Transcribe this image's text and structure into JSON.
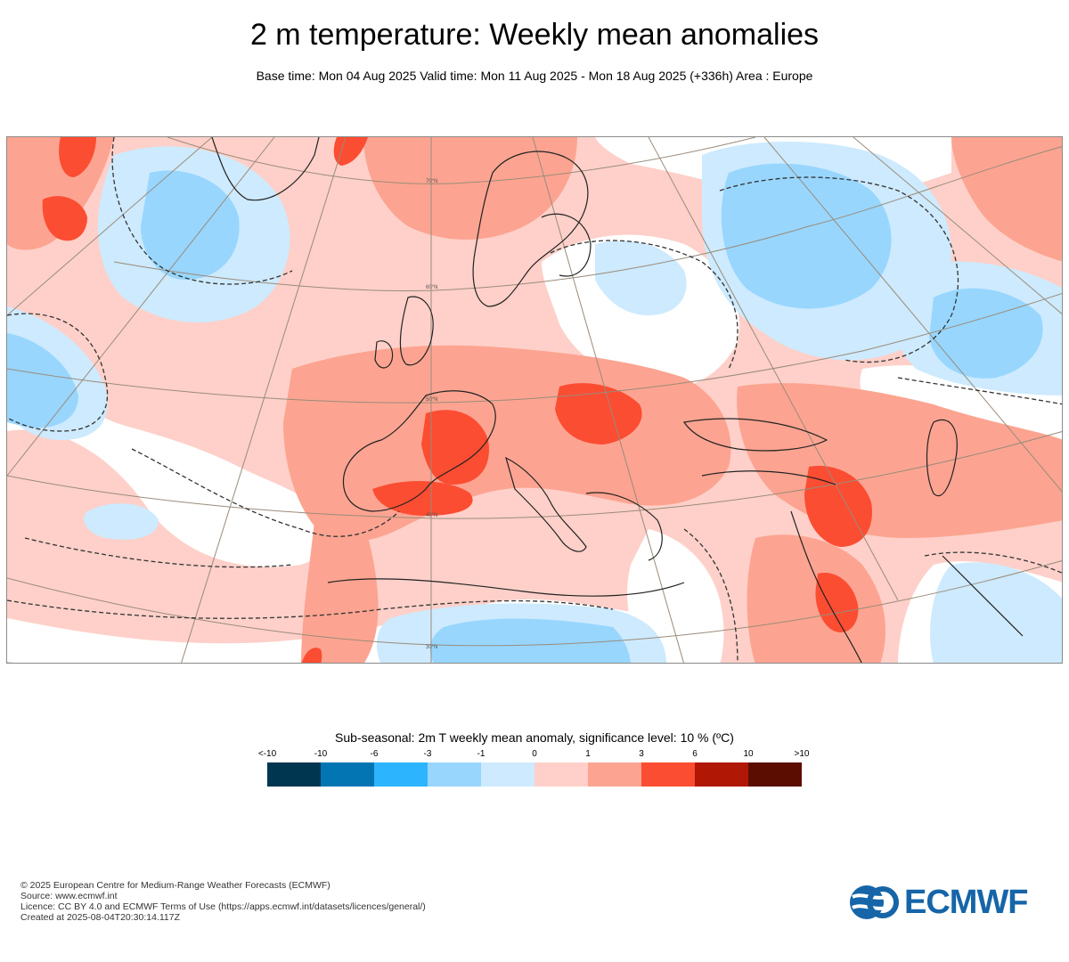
{
  "header": {
    "title": "2 m temperature: Weekly mean anomalies",
    "subtitle": "Base time: Mon 04 Aug 2025 Valid time: Mon 11 Aug 2025 - Mon 18 Aug 2025 (+336h) Area : Europe"
  },
  "map": {
    "latitude_labels": [
      "70°N",
      "60°N",
      "50°N",
      "40°N",
      "30°N"
    ],
    "colors": {
      "ocean_default": "#ffffff",
      "coastline": "#222222",
      "graticule": "#9a8b7a",
      "significance_contour": "#333333"
    }
  },
  "colorbar": {
    "title": "Sub-seasonal: 2m T weekly mean anomaly, significance level: 10 % (ºC)",
    "tick_labels": [
      "<-10",
      "-10",
      "-6",
      "-3",
      "-1",
      "0",
      "1",
      "3",
      "6",
      "10",
      ">10"
    ],
    "colors": [
      "#013651",
      "#0275b2",
      "#2cb5fe",
      "#98d6fe",
      "#cdeafe",
      "#fed0c9",
      "#fca491",
      "#fb4d32",
      "#b11705",
      "#5c0d02"
    ]
  },
  "footer": {
    "lines": [
      "© 2025 European Centre for Medium-Range Weather Forecasts (ECMWF)",
      "Source: www.ecmwf.int",
      "Licence: CC BY 4.0 and ECMWF Terms of Use (https://apps.ecmwf.int/datasets/licences/general/)",
      "Created at 2025-08-04T20:30:14.117Z"
    ],
    "logo_text": "ECMWF",
    "logo_color": "#1565a8"
  }
}
